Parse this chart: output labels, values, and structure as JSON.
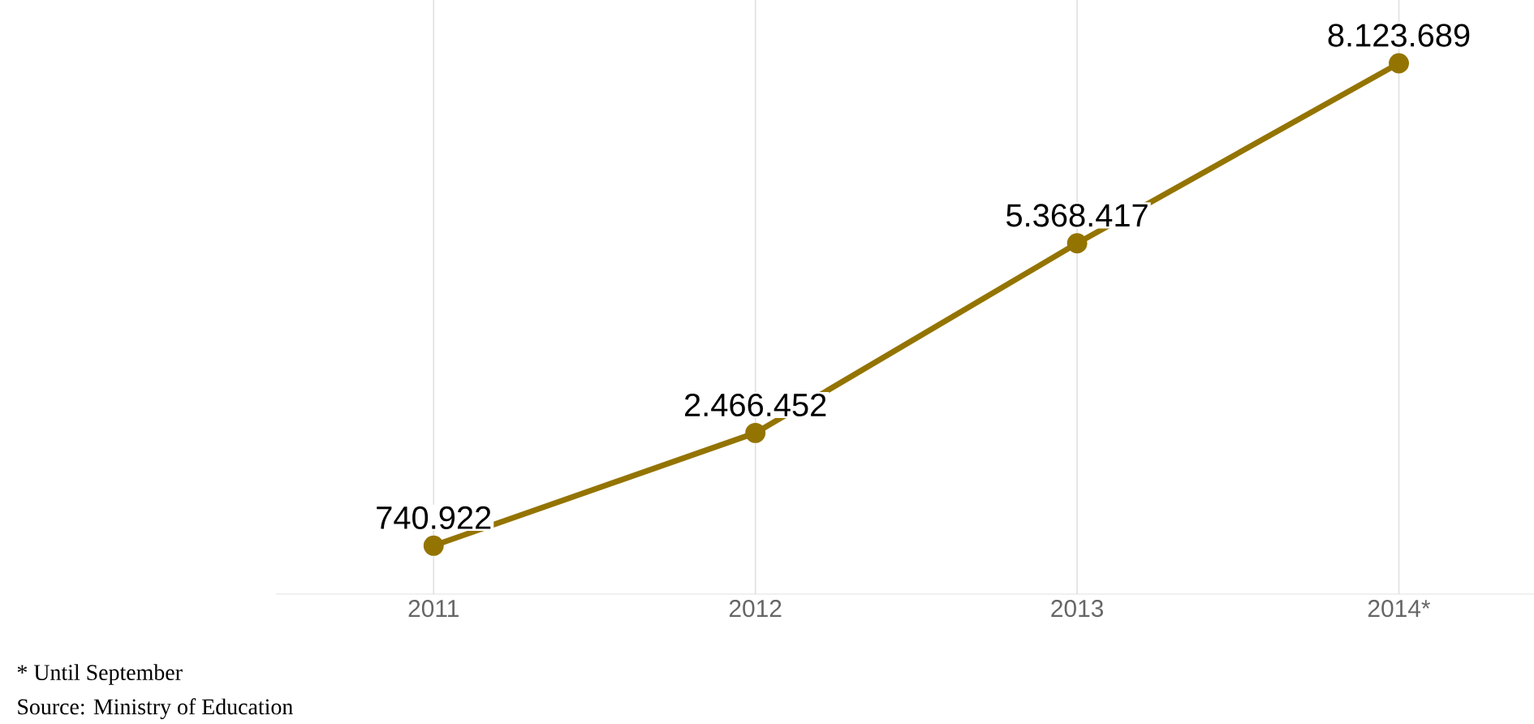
{
  "chart_data": {
    "type": "line",
    "categories": [
      "2011",
      "2012",
      "2013",
      "2014*"
    ],
    "series": [
      {
        "color": "#947400",
        "values": [
          740922,
          2466452,
          5368417,
          8123689
        ],
        "value_labels": [
          "740.922",
          "2.466.452",
          "5.368.417",
          "8.123.689"
        ]
      }
    ],
    "marker": "circle",
    "grid": "x",
    "annotations": [
      "* Until September",
      "Source: Ministry of Education"
    ]
  }
}
